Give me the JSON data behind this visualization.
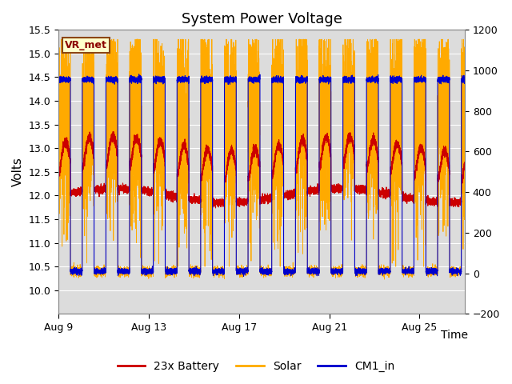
{
  "title": "System Power Voltage",
  "xlabel": "Time",
  "ylabel_left": "Volts",
  "annotation": "VR_met",
  "xtick_days": [
    9,
    13,
    17,
    21,
    25
  ],
  "xtick_labels": [
    "Aug 9",
    "Aug 13",
    "Aug 17",
    "Aug 21",
    "Aug 25"
  ],
  "ylim_left": [
    9.5,
    15.5
  ],
  "ylim_right": [
    -200,
    1200
  ],
  "yticks_left": [
    10.0,
    10.5,
    11.0,
    11.5,
    12.0,
    12.5,
    13.0,
    13.5,
    14.0,
    14.5,
    15.0,
    15.5
  ],
  "yticks_right": [
    -200,
    0,
    200,
    400,
    600,
    800,
    1000,
    1200
  ],
  "color_battery": "#cc0000",
  "color_solar": "#ffaa00",
  "color_cm1": "#0000cc",
  "background_plot": "#dcdcdc",
  "background_fig": "#ffffff",
  "grid_color": "#ffffff",
  "title_fontsize": 13,
  "legend_labels": [
    "23x Battery",
    "Solar",
    "CM1_in"
  ],
  "annotation_facecolor": "#ffffcc",
  "annotation_edgecolor": "#8B4513",
  "annotation_textcolor": "#8B0000"
}
